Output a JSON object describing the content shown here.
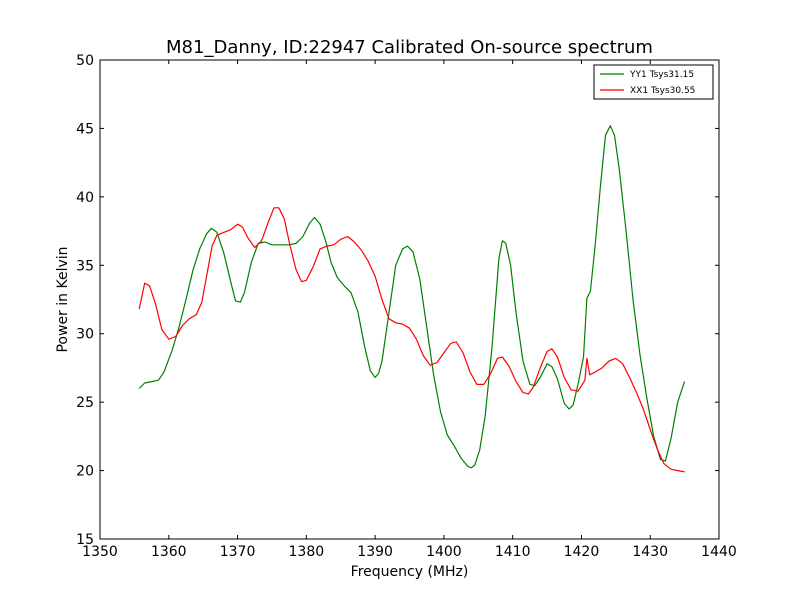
{
  "chart_data": {
    "type": "line",
    "title": "M81_Danny, ID:22947 Calibrated On-source spectrum",
    "xlabel": "Frequency (MHz)",
    "ylabel": "Power in Kelvin",
    "xlim": [
      1350,
      1440
    ],
    "ylim": [
      15,
      50
    ],
    "xticks": [
      1350,
      1360,
      1370,
      1380,
      1390,
      1400,
      1410,
      1420,
      1430,
      1440
    ],
    "yticks": [
      15,
      20,
      25,
      30,
      35,
      40,
      45,
      50
    ],
    "grid": false,
    "legend_position": "top-right",
    "series": [
      {
        "name": "YY1 Tsys31.15",
        "color": "#008000",
        "points": [
          [
            1355.7,
            26.0
          ],
          [
            1356.5,
            26.4
          ],
          [
            1357.5,
            26.5
          ],
          [
            1358.5,
            26.6
          ],
          [
            1359.3,
            27.2
          ],
          [
            1360.5,
            28.8
          ],
          [
            1361.5,
            30.5
          ],
          [
            1362.5,
            32.5
          ],
          [
            1363.5,
            34.6
          ],
          [
            1364.5,
            36.2
          ],
          [
            1365.5,
            37.3
          ],
          [
            1366.2,
            37.7
          ],
          [
            1367.0,
            37.4
          ],
          [
            1368.0,
            35.9
          ],
          [
            1369.0,
            33.8
          ],
          [
            1369.7,
            32.4
          ],
          [
            1370.4,
            32.3
          ],
          [
            1371.0,
            33.0
          ],
          [
            1372.0,
            35.2
          ],
          [
            1373.0,
            36.6
          ],
          [
            1374.0,
            36.7
          ],
          [
            1375.0,
            36.5
          ],
          [
            1376.0,
            36.5
          ],
          [
            1377.5,
            36.5
          ],
          [
            1378.5,
            36.6
          ],
          [
            1379.5,
            37.1
          ],
          [
            1380.5,
            38.1
          ],
          [
            1381.2,
            38.5
          ],
          [
            1382.0,
            38.0
          ],
          [
            1382.8,
            36.8
          ],
          [
            1383.6,
            35.2
          ],
          [
            1384.5,
            34.1
          ],
          [
            1385.5,
            33.5
          ],
          [
            1386.5,
            33.0
          ],
          [
            1387.5,
            31.6
          ],
          [
            1388.5,
            29.0
          ],
          [
            1389.3,
            27.3
          ],
          [
            1390.0,
            26.8
          ],
          [
            1390.5,
            27.1
          ],
          [
            1391.0,
            28.0
          ],
          [
            1392.0,
            31.5
          ],
          [
            1393.0,
            35.0
          ],
          [
            1394.0,
            36.2
          ],
          [
            1394.7,
            36.4
          ],
          [
            1395.5,
            36.0
          ],
          [
            1396.5,
            34.0
          ],
          [
            1397.5,
            30.5
          ],
          [
            1398.5,
            27.0
          ],
          [
            1399.5,
            24.3
          ],
          [
            1400.5,
            22.6
          ],
          [
            1401.5,
            21.8
          ],
          [
            1402.5,
            20.9
          ],
          [
            1403.5,
            20.3
          ],
          [
            1404.0,
            20.2
          ],
          [
            1404.5,
            20.4
          ],
          [
            1405.2,
            21.5
          ],
          [
            1406.0,
            24.0
          ],
          [
            1407.0,
            29.0
          ],
          [
            1408.0,
            35.5
          ],
          [
            1408.5,
            36.8
          ],
          [
            1409.0,
            36.6
          ],
          [
            1409.7,
            35.0
          ],
          [
            1410.5,
            31.5
          ],
          [
            1411.5,
            28.0
          ],
          [
            1412.5,
            26.3
          ],
          [
            1413.2,
            26.2
          ],
          [
            1414.0,
            26.8
          ],
          [
            1415.0,
            27.8
          ],
          [
            1415.7,
            27.6
          ],
          [
            1416.5,
            26.7
          ],
          [
            1417.5,
            24.9
          ],
          [
            1418.2,
            24.5
          ],
          [
            1418.8,
            24.8
          ],
          [
            1419.5,
            26.3
          ],
          [
            1420.3,
            28.3
          ],
          [
            1420.8,
            32.6
          ],
          [
            1421.3,
            33.1
          ],
          [
            1422.0,
            36.5
          ],
          [
            1422.8,
            41.0
          ],
          [
            1423.5,
            44.5
          ],
          [
            1424.2,
            45.2
          ],
          [
            1424.8,
            44.5
          ],
          [
            1425.5,
            42.0
          ],
          [
            1426.5,
            37.5
          ],
          [
            1427.5,
            32.5
          ],
          [
            1428.5,
            28.5
          ],
          [
            1429.5,
            25.3
          ],
          [
            1430.5,
            22.5
          ],
          [
            1431.5,
            20.8
          ],
          [
            1432.2,
            20.7
          ],
          [
            1433.0,
            22.3
          ],
          [
            1434.0,
            25.0
          ],
          [
            1435.0,
            26.5
          ]
        ]
      },
      {
        "name": "XX1 Tsys30.55",
        "color": "#ff0000",
        "points": [
          [
            1355.7,
            31.8
          ],
          [
            1356.5,
            33.7
          ],
          [
            1357.2,
            33.5
          ],
          [
            1358.0,
            32.3
          ],
          [
            1359.0,
            30.3
          ],
          [
            1360.0,
            29.6
          ],
          [
            1361.0,
            29.8
          ],
          [
            1362.0,
            30.6
          ],
          [
            1363.0,
            31.1
          ],
          [
            1364.0,
            31.4
          ],
          [
            1364.8,
            32.3
          ],
          [
            1365.5,
            34.2
          ],
          [
            1366.3,
            36.4
          ],
          [
            1367.0,
            37.2
          ],
          [
            1368.0,
            37.4
          ],
          [
            1369.0,
            37.6
          ],
          [
            1370.0,
            38.0
          ],
          [
            1370.7,
            37.8
          ],
          [
            1371.5,
            37.0
          ],
          [
            1372.5,
            36.3
          ],
          [
            1373.5,
            36.8
          ],
          [
            1374.5,
            38.2
          ],
          [
            1375.3,
            39.2
          ],
          [
            1376.0,
            39.2
          ],
          [
            1376.8,
            38.4
          ],
          [
            1377.6,
            36.5
          ],
          [
            1378.5,
            34.7
          ],
          [
            1379.3,
            33.8
          ],
          [
            1380.0,
            33.9
          ],
          [
            1381.0,
            34.9
          ],
          [
            1382.0,
            36.2
          ],
          [
            1383.0,
            36.4
          ],
          [
            1384.0,
            36.5
          ],
          [
            1385.0,
            36.9
          ],
          [
            1386.0,
            37.1
          ],
          [
            1387.0,
            36.7
          ],
          [
            1388.0,
            36.1
          ],
          [
            1389.0,
            35.3
          ],
          [
            1390.0,
            34.2
          ],
          [
            1391.0,
            32.5
          ],
          [
            1392.0,
            31.1
          ],
          [
            1393.0,
            30.8
          ],
          [
            1394.0,
            30.7
          ],
          [
            1395.0,
            30.4
          ],
          [
            1396.0,
            29.6
          ],
          [
            1397.0,
            28.4
          ],
          [
            1398.0,
            27.7
          ],
          [
            1399.0,
            27.9
          ],
          [
            1400.0,
            28.6
          ],
          [
            1401.0,
            29.3
          ],
          [
            1401.8,
            29.4
          ],
          [
            1402.8,
            28.6
          ],
          [
            1403.8,
            27.2
          ],
          [
            1404.8,
            26.3
          ],
          [
            1405.8,
            26.3
          ],
          [
            1406.8,
            27.1
          ],
          [
            1407.8,
            28.2
          ],
          [
            1408.5,
            28.3
          ],
          [
            1409.5,
            27.6
          ],
          [
            1410.5,
            26.5
          ],
          [
            1411.5,
            25.7
          ],
          [
            1412.3,
            25.6
          ],
          [
            1413.0,
            26.1
          ],
          [
            1414.0,
            27.5
          ],
          [
            1415.0,
            28.7
          ],
          [
            1415.7,
            28.9
          ],
          [
            1416.5,
            28.3
          ],
          [
            1417.5,
            26.8
          ],
          [
            1418.5,
            25.9
          ],
          [
            1419.5,
            25.8
          ],
          [
            1420.5,
            26.6
          ],
          [
            1420.8,
            28.2
          ],
          [
            1421.2,
            27.0
          ],
          [
            1422.0,
            27.2
          ],
          [
            1423.0,
            27.5
          ],
          [
            1424.0,
            28.0
          ],
          [
            1425.0,
            28.2
          ],
          [
            1426.0,
            27.8
          ],
          [
            1427.0,
            26.8
          ],
          [
            1428.0,
            25.7
          ],
          [
            1429.0,
            24.5
          ],
          [
            1430.0,
            23.0
          ],
          [
            1431.0,
            21.6
          ],
          [
            1432.0,
            20.5
          ],
          [
            1433.0,
            20.1
          ],
          [
            1434.0,
            20.0
          ],
          [
            1435.0,
            19.9
          ]
        ]
      }
    ]
  }
}
